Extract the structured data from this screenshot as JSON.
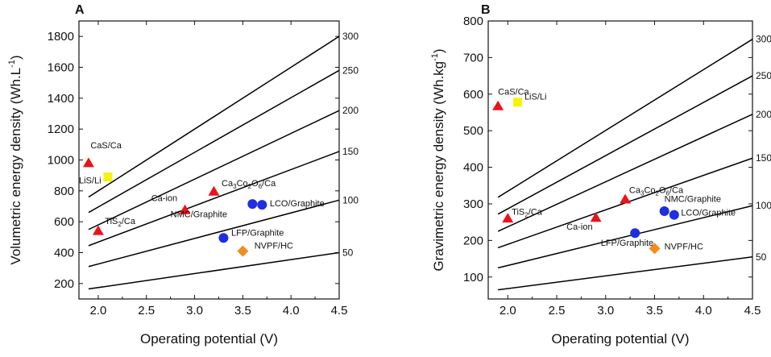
{
  "chart_data": [
    {
      "panel_label": "A",
      "type": "line",
      "xlabel": "Operating potential (V)",
      "ylabel": "Volumetric energy density (Wh.L",
      "ylabel_sup": "-1",
      "ylabel_close": ")",
      "xlim": [
        1.8,
        4.5
      ],
      "ylim": [
        100,
        1900
      ],
      "x_ticks": [
        "2.0",
        "2.5",
        "3.0",
        "3.5",
        "4.0",
        "4.5"
      ],
      "y_ticks": [
        "200",
        "400",
        "600",
        "800",
        "1000",
        "1200",
        "1400",
        "1600",
        "1800"
      ],
      "iso_lines": [
        {
          "label": "50",
          "x": [
            1.9,
            4.5
          ],
          "y": [
            165,
            400
          ]
        },
        {
          "label": "100",
          "x": [
            1.9,
            4.5
          ],
          "y": [
            310,
            740
          ]
        },
        {
          "label": "150",
          "x": [
            1.9,
            4.5
          ],
          "y": [
            445,
            1055
          ]
        },
        {
          "label": "200",
          "x": [
            1.9,
            4.5
          ],
          "y": [
            550,
            1320
          ]
        },
        {
          "label": "250",
          "x": [
            1.9,
            4.5
          ],
          "y": [
            660,
            1580
          ]
        },
        {
          "label": "300",
          "x": [
            1.9,
            4.5
          ],
          "y": [
            760,
            1800
          ]
        }
      ],
      "points": [
        {
          "name": "CaS/Ca",
          "x": 1.9,
          "y": 980,
          "marker": "triangle",
          "color": "#e8141b"
        },
        {
          "name": "LiS/Li",
          "x": 2.1,
          "y": 890,
          "marker": "square",
          "color": "#f4f40a"
        },
        {
          "name": "TiS2/Ca",
          "x": 2.0,
          "y": 540,
          "marker": "triangle",
          "color": "#e8141b"
        },
        {
          "name": "Ca-ion",
          "x": 2.9,
          "y": 675,
          "marker": "triangle",
          "color": "#e8141b"
        },
        {
          "name": "Ca3Co2O6/Ca",
          "x": 3.2,
          "y": 795,
          "marker": "triangle",
          "color": "#e8141b"
        },
        {
          "name": "NMC/Graphite",
          "x": 3.6,
          "y": 715,
          "marker": "circle",
          "color": "#1f2ee0"
        },
        {
          "name": "LCO/Graphite",
          "x": 3.7,
          "y": 710,
          "marker": "circle",
          "color": "#1f2ee0"
        },
        {
          "name": "LFP/Graphite",
          "x": 3.3,
          "y": 495,
          "marker": "circle",
          "color": "#1f2ee0"
        },
        {
          "name": "NVPF/HC",
          "x": 3.5,
          "y": 410,
          "marker": "diamond",
          "color": "#f28c1e"
        }
      ],
      "labels": [
        {
          "text": "CaS/Ca",
          "x": 1.92,
          "y": 1075
        },
        {
          "text": "LiS/Li",
          "x": 1.8,
          "y": 850
        },
        {
          "text": "TiS",
          "sub": "2",
          "rest": "/Ca",
          "x": 2.07,
          "y": 585
        },
        {
          "text": "Ca-ion",
          "x": 2.55,
          "y": 735
        },
        {
          "text": "Ca",
          "sub": "3",
          "rest": "Co",
          "sub2": "2",
          "rest2": "O",
          "sub3": "6",
          "rest3": "/Ca",
          "x": 3.28,
          "y": 830
        },
        {
          "text": "NMC/Graphite",
          "x": 2.75,
          "y": 630
        },
        {
          "text": "LCO/Graphite",
          "x": 3.78,
          "y": 700
        },
        {
          "text": "LFP/Graphite",
          "x": 3.38,
          "y": 510
        },
        {
          "text": "NVPF/HC",
          "x": 3.62,
          "y": 425
        }
      ]
    },
    {
      "panel_label": "B",
      "type": "line",
      "xlabel": "Operating potential (V)",
      "ylabel": "Gravimetric energy density (Wh.kg",
      "ylabel_sup": "-1",
      "ylabel_close": ")",
      "xlim": [
        1.8,
        4.5
      ],
      "ylim": [
        40,
        800
      ],
      "x_ticks": [
        "2.0",
        "2.5",
        "3.0",
        "3.5",
        "4.0",
        "4.5"
      ],
      "y_ticks": [
        "100",
        "200",
        "300",
        "400",
        "500",
        "600",
        "700",
        "800"
      ],
      "iso_lines": [
        {
          "label": "50",
          "x": [
            1.9,
            4.5
          ],
          "y": [
            65,
            155
          ]
        },
        {
          "label": "100",
          "x": [
            1.9,
            4.5
          ],
          "y": [
            125,
            295
          ]
        },
        {
          "label": "150",
          "x": [
            1.9,
            4.5
          ],
          "y": [
            180,
            425
          ]
        },
        {
          "label": "200",
          "x": [
            1.9,
            4.5
          ],
          "y": [
            225,
            545
          ]
        },
        {
          "label": "250",
          "x": [
            1.9,
            4.5
          ],
          "y": [
            272,
            650
          ]
        },
        {
          "label": "300",
          "x": [
            1.9,
            4.5
          ],
          "y": [
            318,
            750
          ]
        }
      ],
      "points": [
        {
          "name": "CaS/Ca",
          "x": 1.9,
          "y": 567,
          "marker": "triangle",
          "color": "#e8141b"
        },
        {
          "name": "LiS/Li",
          "x": 2.1,
          "y": 578,
          "marker": "square",
          "color": "#f4f40a"
        },
        {
          "name": "TiS2/Ca",
          "x": 2.0,
          "y": 260,
          "marker": "triangle",
          "color": "#e8141b"
        },
        {
          "name": "Ca-ion",
          "x": 2.9,
          "y": 262,
          "marker": "triangle",
          "color": "#e8141b"
        },
        {
          "name": "Ca3Co2O6/Ca",
          "x": 3.2,
          "y": 312,
          "marker": "triangle",
          "color": "#e8141b"
        },
        {
          "name": "NMC/Graphite",
          "x": 3.6,
          "y": 280,
          "marker": "circle",
          "color": "#1f2ee0"
        },
        {
          "name": "LCO/Graphite",
          "x": 3.7,
          "y": 270,
          "marker": "circle",
          "color": "#1f2ee0"
        },
        {
          "name": "LFP/Graphite",
          "x": 3.3,
          "y": 220,
          "marker": "circle",
          "color": "#1f2ee0"
        },
        {
          "name": "NVPF/HC",
          "x": 3.5,
          "y": 178,
          "marker": "diamond",
          "color": "#f28c1e"
        }
      ],
      "labels": [
        {
          "text": "CaS/Ca",
          "x": 1.9,
          "y": 598
        },
        {
          "text": "LiS/Li",
          "x": 2.17,
          "y": 585
        },
        {
          "text": "TiS",
          "sub": "2",
          "rest": "/Ca",
          "x": 2.04,
          "y": 270
        },
        {
          "text": "Ca-ion",
          "x": 2.6,
          "y": 230
        },
        {
          "text": "Ca",
          "sub": "3",
          "rest": "Co",
          "sub2": "2",
          "rest2": "O",
          "sub3": "6",
          "rest3": "/Ca",
          "x": 3.24,
          "y": 330
        },
        {
          "text": "NMC/Graphite",
          "x": 3.6,
          "y": 306
        },
        {
          "text": "LCO/Graphite",
          "x": 3.77,
          "y": 268
        },
        {
          "text": "LFP/Graphite",
          "x": 2.95,
          "y": 185
        },
        {
          "text": "NVPF/HC",
          "x": 3.6,
          "y": 175
        }
      ]
    }
  ]
}
